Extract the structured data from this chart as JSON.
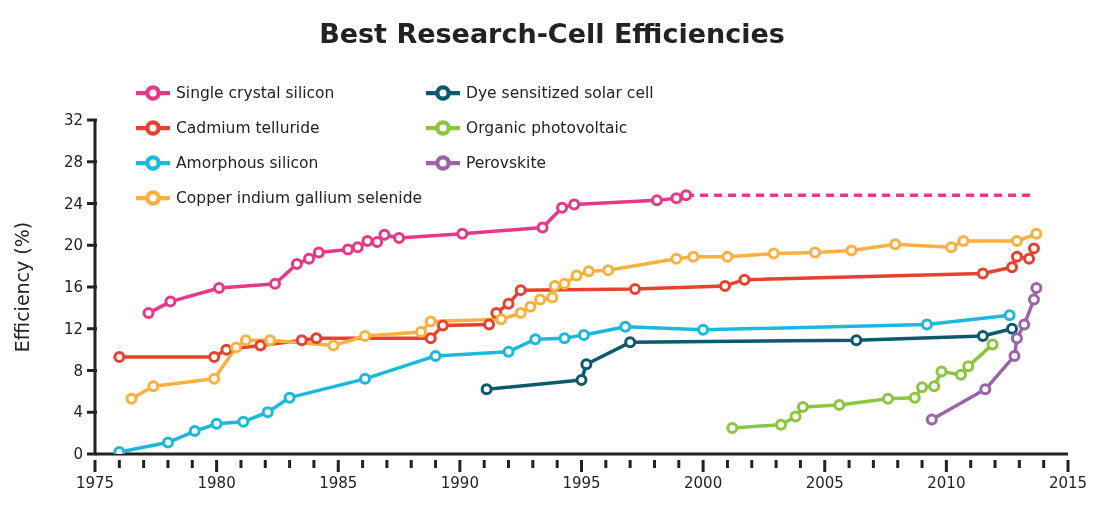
{
  "chart_data": {
    "type": "line",
    "title": "Best Research-Cell Efficiencies",
    "ylabel": "Efficiency (%)",
    "xlim": [
      1975,
      2015
    ],
    "xticks": [
      1975,
      {
        "value": 1976,
        "label": null
      },
      {
        "value": 1977,
        "label": null
      },
      {
        "value": 1978,
        "label": null
      },
      {
        "value": 1979,
        "label": null
      },
      1980,
      {
        "value": 1981,
        "label": null
      },
      {
        "value": 1982,
        "label": null
      },
      {
        "value": 1983,
        "label": null
      },
      {
        "value": 1984,
        "label": null
      },
      1985,
      {
        "value": 1986,
        "label": null
      },
      {
        "value": 1987,
        "label": null
      },
      {
        "value": 1988,
        "label": null
      },
      {
        "value": 1989,
        "label": null
      },
      1990,
      {
        "value": 1991,
        "label": null
      },
      {
        "value": 1992,
        "label": null
      },
      {
        "value": 1993,
        "label": null
      },
      {
        "value": 1994,
        "label": null
      },
      1995,
      {
        "value": 1996,
        "label": null
      },
      {
        "value": 1997,
        "label": null
      },
      {
        "value": 1998,
        "label": null
      },
      {
        "value": 1999,
        "label": null
      },
      2000,
      {
        "value": 2001,
        "label": null
      },
      {
        "value": 2002,
        "label": null
      },
      {
        "value": 2003,
        "label": null
      },
      {
        "value": 2004,
        "label": null
      },
      2005,
      {
        "value": 2006,
        "label": null
      },
      {
        "value": 2007,
        "label": null
      },
      {
        "value": 2008,
        "label": null
      },
      {
        "value": 2009,
        "label": null
      },
      2010,
      {
        "value": 2011,
        "label": null
      },
      {
        "value": 2012,
        "label": null
      },
      {
        "value": 2013,
        "label": null
      },
      {
        "value": 2014,
        "label": null
      },
      2015
    ],
    "ylim": [
      0,
      32
    ],
    "yticks": [
      0,
      4,
      8,
      12,
      16,
      20,
      24,
      28,
      32
    ],
    "grid": false,
    "legend": "top left",
    "marker": "circle",
    "line_style": "solid",
    "series": [
      {
        "name": "Single crystal silicon",
        "color": "#e8388a",
        "x": [
          1977.2,
          1978.1,
          1980.1,
          1982.4,
          1983.3,
          1983.8,
          1984.2,
          1985.4,
          1985.8,
          1986.2,
          1986.6,
          1986.9,
          1987.5,
          1990.1,
          1993.4,
          1994.2,
          1994.7,
          1998.1,
          1998.9,
          1999.3
        ],
        "values": [
          13.5,
          14.6,
          15.9,
          16.3,
          18.2,
          18.7,
          19.3,
          19.6,
          19.8,
          20.4,
          20.3,
          21.0,
          20.7,
          21.1,
          21.7,
          23.6,
          23.9,
          24.3,
          24.5,
          24.8
        ]
      },
      {
        "color": "#e8388a",
        "x": [
          1999.3,
          2013.5
        ],
        "values": [
          24.8,
          24.8
        ],
        "line_style": "dashed",
        "marker": "none"
      },
      {
        "name": "Cadmium telluride",
        "color": "#e8412f",
        "x": [
          1976.0,
          1979.9,
          1980.4,
          1981.8,
          1983.5,
          1984.1,
          1988.8,
          1989.3,
          1991.2,
          1991.5,
          1992.0,
          1992.5,
          1997.2,
          2000.9,
          2001.7,
          2011.5,
          2012.7,
          2012.9,
          2013.4,
          2013.6
        ],
        "values": [
          9.3,
          9.3,
          10.0,
          10.4,
          10.9,
          11.1,
          11.1,
          12.3,
          12.4,
          13.5,
          14.4,
          15.7,
          15.8,
          16.1,
          16.7,
          17.3,
          17.9,
          18.9,
          18.7,
          19.7
        ]
      },
      {
        "name": "Amorphous silicon",
        "color": "#1bb8e0",
        "x": [
          1976.0,
          1978.0,
          1979.1,
          1980.0,
          1981.1,
          1982.1,
          1983.0,
          1986.1,
          1989.0,
          1992.0,
          1993.1,
          1994.3,
          1995.1,
          1996.8,
          2000.0,
          2009.2,
          2012.6
        ],
        "values": [
          0.2,
          1.1,
          2.2,
          2.9,
          3.1,
          4.0,
          5.4,
          7.2,
          9.4,
          9.8,
          11.0,
          11.1,
          11.4,
          12.2,
          11.9,
          12.4,
          13.3
        ]
      },
      {
        "name": "Copper indium gallium selenide",
        "color": "#fbb040",
        "x": [
          1976.5,
          1977.4,
          1979.9,
          1980.8,
          1981.2,
          1982.2,
          1984.8,
          1986.1,
          1988.4,
          1988.8,
          1991.7,
          1992.5,
          1992.9,
          1993.3,
          1993.8,
          1993.9,
          1994.3,
          1994.8,
          1995.3,
          1996.1,
          1998.9,
          1999.6,
          2001.0,
          2002.9,
          2004.6,
          2006.1,
          2007.9,
          2010.2,
          2010.7,
          2012.9,
          2013.7
        ],
        "values": [
          5.3,
          6.5,
          7.2,
          10.2,
          10.9,
          10.9,
          10.4,
          11.3,
          11.7,
          12.7,
          12.9,
          13.5,
          14.1,
          14.8,
          15.0,
          16.1,
          16.3,
          17.1,
          17.5,
          17.6,
          18.7,
          18.9,
          18.9,
          19.2,
          19.3,
          19.5,
          20.1,
          19.8,
          20.4,
          20.4,
          21.1
        ]
      },
      {
        "name": "Dye sensitized solar cell",
        "color": "#0d5a6e",
        "x": [
          1991.1,
          1995.0,
          1995.2,
          1997.0,
          2006.3,
          2011.5,
          2012.7
        ],
        "values": [
          6.2,
          7.1,
          8.6,
          10.7,
          10.9,
          11.3,
          12.0
        ]
      },
      {
        "name": "Organic photovoltaic",
        "color": "#8cc63f",
        "x": [
          2001.2,
          2003.2,
          2003.8,
          2004.1,
          2005.6,
          2007.6,
          2008.7,
          2009.0,
          2009.5,
          2009.8,
          2010.6,
          2010.9,
          2011.9
        ],
        "values": [
          2.5,
          2.8,
          3.6,
          4.5,
          4.7,
          5.3,
          5.4,
          6.4,
          6.5,
          7.9,
          7.6,
          8.4,
          10.5
        ]
      },
      {
        "name": "Perovskite",
        "color": "#9b64a8",
        "x": [
          2009.4,
          2011.6,
          2012.8,
          2012.9,
          2013.2,
          2013.6,
          2013.7
        ],
        "values": [
          3.3,
          6.2,
          9.4,
          11.1,
          12.4,
          14.8,
          15.9
        ]
      }
    ]
  }
}
